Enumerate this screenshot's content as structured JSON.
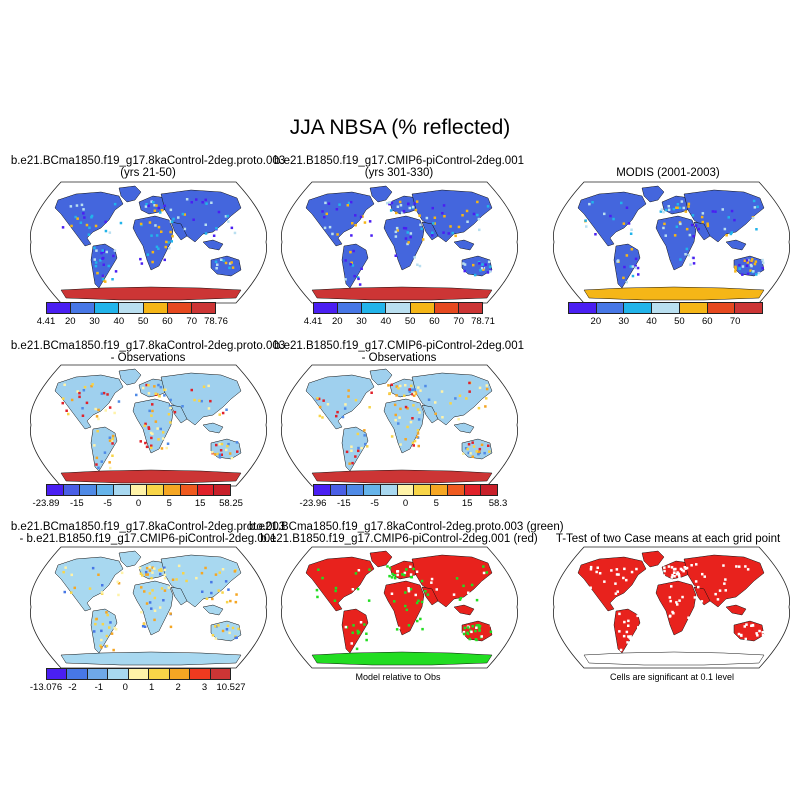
{
  "main_title": "JJA NBSA (% reflected)",
  "panels": [
    {
      "id": "p1",
      "title_line1": "b.e21.BCma1850.f19_g17.8kaControl-2deg.proto.003",
      "title_line2": "(yrs 21-50)",
      "type": "albedo",
      "land_fill": "#4466dd",
      "colorbar": {
        "colors": [
          "#4a1ff2",
          "#4777e6",
          "#22b4ea",
          "#b9dff0",
          "#f5b617",
          "#e6491f",
          "#cc3535"
        ],
        "ticks": [
          "4.41",
          "20",
          "30",
          "40",
          "50",
          "60",
          "70",
          "78.76"
        ]
      }
    },
    {
      "id": "p2",
      "title_line1": "b.e21.B1850.f19_g17.CMIP6-piControl-2deg.001",
      "title_line2": "(yrs 301-330)",
      "type": "albedo",
      "land_fill": "#4466dd",
      "colorbar": {
        "colors": [
          "#4a1ff2",
          "#4777e6",
          "#22b4ea",
          "#b9dff0",
          "#f5b617",
          "#e6491f",
          "#cc3535"
        ],
        "ticks": [
          "4.41",
          "20",
          "30",
          "40",
          "50",
          "60",
          "70",
          "78.71"
        ]
      }
    },
    {
      "id": "p3",
      "title_line1": "MODIS (2001-2003)",
      "title_line2": "",
      "type": "albedo_obs",
      "land_fill": "#4466dd",
      "colorbar": {
        "colors": [
          "#4a1ff2",
          "#4777e6",
          "#22b4ea",
          "#b9dff0",
          "#f5b617",
          "#e6491f",
          "#cc3535"
        ],
        "ticks": [
          "",
          "20",
          "30",
          "40",
          "50",
          "60",
          "70",
          ""
        ]
      }
    },
    {
      "id": "p4",
      "title_line1": "b.e21.BCma1850.f19_g17.8kaControl-2deg.proto.003",
      "title_line2": "- Observations",
      "type": "diff",
      "land_fill": "#9fd0ee",
      "colorbar": {
        "colors": [
          "#4a1ff2",
          "#4a5fe6",
          "#4f8ae6",
          "#66b4ea",
          "#a8d8f0",
          "#fff3a8",
          "#f8d548",
          "#f5a623",
          "#ef5a1f",
          "#e0212a",
          "#c8202a"
        ],
        "ticks": [
          "-23.89",
          "-15",
          "-5",
          "0",
          "5",
          "15",
          "58.25"
        ]
      }
    },
    {
      "id": "p5",
      "title_line1": "b.e21.B1850.f19_g17.CMIP6-piControl-2deg.001",
      "title_line2": "- Observations",
      "type": "diff",
      "land_fill": "#9fd0ee",
      "colorbar": {
        "colors": [
          "#4a1ff2",
          "#4a5fe6",
          "#4f8ae6",
          "#66b4ea",
          "#a8d8f0",
          "#fff3a8",
          "#f8d548",
          "#f5a623",
          "#ef5a1f",
          "#e0212a",
          "#c8202a"
        ],
        "ticks": [
          "-23.96",
          "-15",
          "-5",
          "0",
          "5",
          "15",
          "58.3"
        ]
      }
    },
    {
      "id": "p6",
      "title_line1": "b.e21.BCma1850.f19_g17.8kaControl-2deg.proto.003",
      "title_line2": "- b.e21.B1850.f19_g17.CMIP6-piControl-2deg.001",
      "type": "casediff",
      "land_fill": "#a8d8f0",
      "colorbar": {
        "colors": [
          "#4a1ff2",
          "#4777e6",
          "#6fa8e8",
          "#a8d8f0",
          "#fff3a8",
          "#f8d548",
          "#f5a623",
          "#ef3a1f",
          "#cc3535"
        ],
        "ticks": [
          "-13.076",
          "-2",
          "-1",
          "0",
          "1",
          "2",
          "3",
          "10.527"
        ]
      }
    },
    {
      "id": "p7",
      "title_line1": "b.e21.BCma1850.f19_g17.8kaControl-2deg.proto.003 (green)",
      "title_line2": "b.e21.B1850.f19_g17.CMIP6-piControl-2deg.001 (red)",
      "type": "greenred",
      "land_fill": "#e8221d",
      "note": "Model relative to Obs"
    },
    {
      "id": "p8",
      "title_line1": "T-Test of two Case means at each grid point",
      "title_line2": "",
      "type": "ttest",
      "land_fill": "#e8221d",
      "note": "Cells are significant at 0.1 level"
    }
  ]
}
